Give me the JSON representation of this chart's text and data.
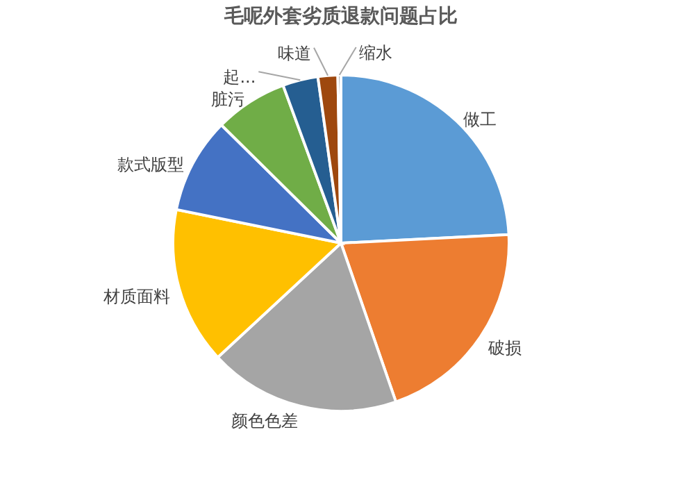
{
  "chart_data": {
    "type": "pie",
    "title": "毛呢外套劣质退款问题占比",
    "categories": [
      "做工",
      "破损",
      "颜色色差",
      "材质面料",
      "款式版型",
      "脏污",
      "起...",
      "味道",
      "缩水"
    ],
    "values": [
      24.2,
      20.5,
      18.4,
      15.1,
      9.2,
      7.0,
      3.4,
      1.9,
      0.3
    ],
    "colors": [
      "#5b9bd5",
      "#ed7d31",
      "#a5a5a5",
      "#ffc000",
      "#4472c4",
      "#70ad47",
      "#255e91",
      "#9e480e",
      "#636363"
    ],
    "legend": false
  }
}
